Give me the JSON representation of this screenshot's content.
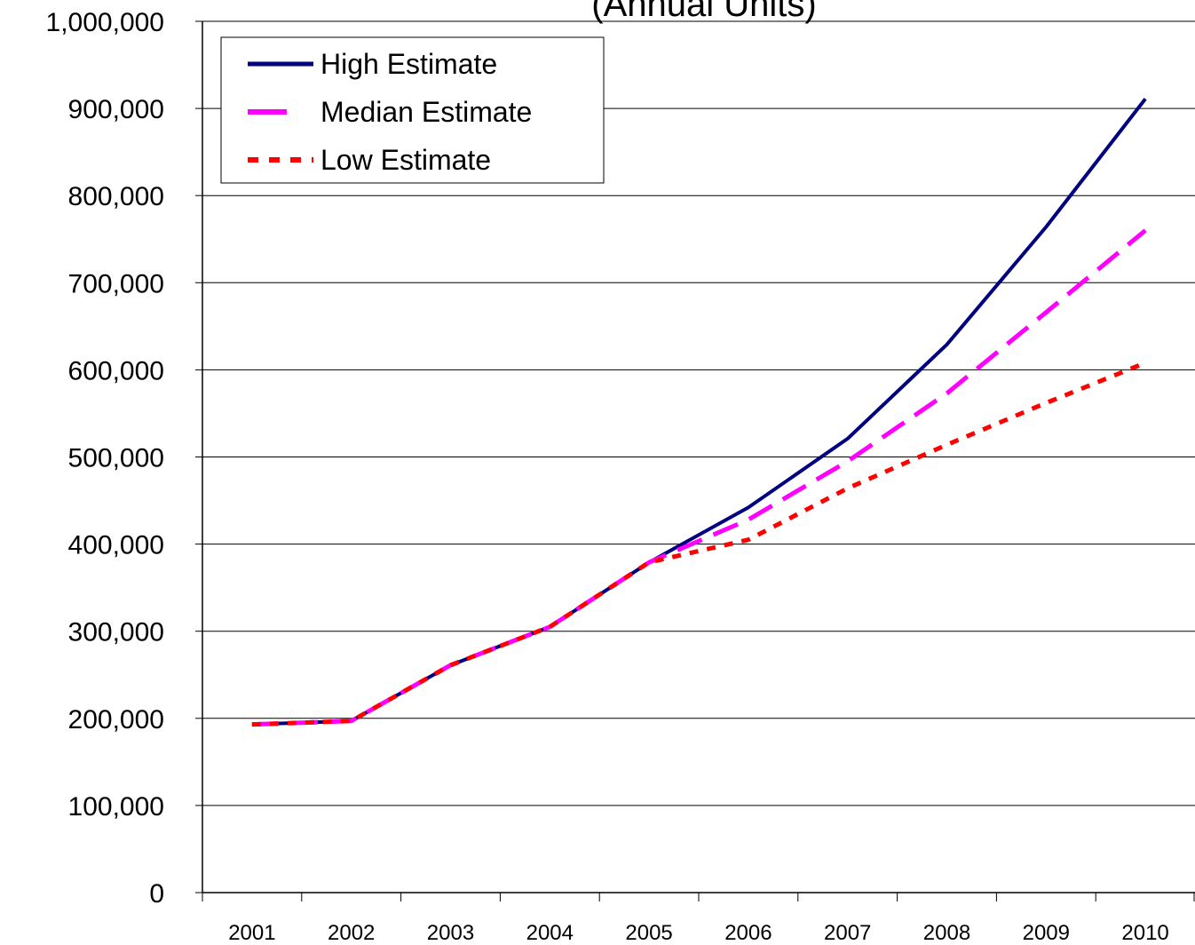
{
  "chart_data": {
    "type": "line",
    "subtitle": "(Annual Units)",
    "categories": [
      "2001",
      "2002",
      "2003",
      "2004",
      "2005",
      "2006",
      "2007",
      "2008",
      "2009",
      "2010"
    ],
    "series": [
      {
        "name": "High Estimate",
        "color": "#000080",
        "dash": "solid",
        "values": [
          193000,
          197000,
          261000,
          305000,
          379000,
          442000,
          521000,
          629000,
          764000,
          911000
        ]
      },
      {
        "name": "Median Estimate",
        "color": "#ff00ff",
        "dash": "dash",
        "values": [
          193000,
          197000,
          261000,
          305000,
          379000,
          428000,
          495000,
          573000,
          666000,
          760000
        ]
      },
      {
        "name": "Low Estimate",
        "color": "#ff0000",
        "dash": "dot",
        "values": [
          193000,
          197000,
          261000,
          305000,
          379000,
          405000,
          464000,
          514000,
          562000,
          608000
        ]
      }
    ],
    "ylim": [
      0,
      1000000
    ],
    "yticks": [
      0,
      {
        "value": 100000,
        "label": "100,000"
      },
      {
        "value": 200000,
        "label": "200,000"
      },
      {
        "value": 300000,
        "label": "300,000"
      },
      {
        "value": 400000,
        "label": "400,000"
      },
      {
        "value": 500000,
        "label": "500,000"
      },
      {
        "value": 600000,
        "label": "600,000"
      },
      {
        "value": 700000,
        "label": "700,000"
      },
      {
        "value": 800000,
        "label": "800,000"
      },
      {
        "value": 900000,
        "label": "900,000"
      },
      {
        "value": 1000000,
        "label": "1,000,000"
      }
    ],
    "grid": true,
    "legend": "upper left"
  }
}
